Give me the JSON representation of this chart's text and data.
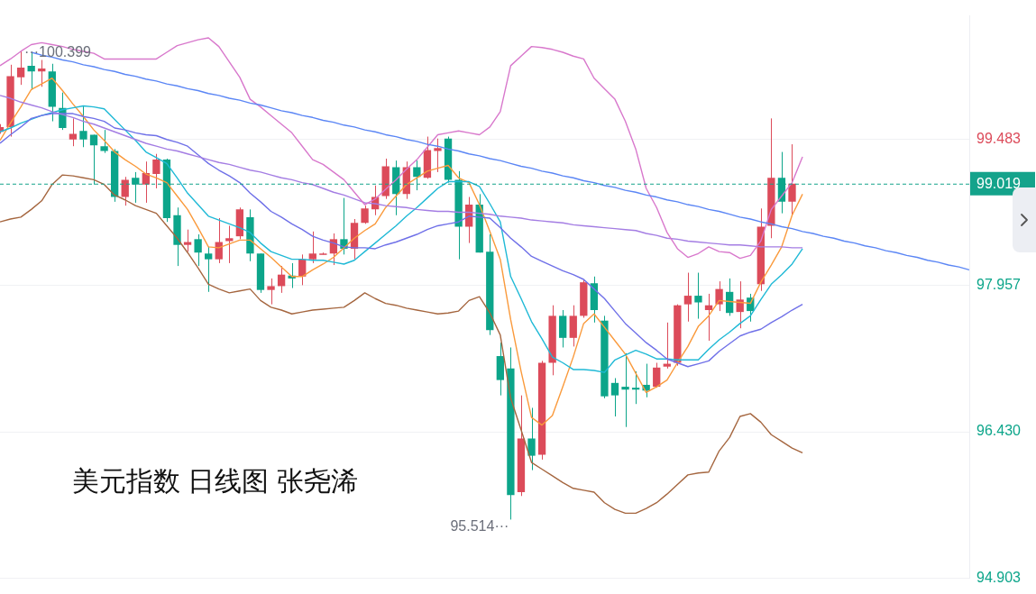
{
  "chart_data": {
    "type": "candlestick",
    "title": "美元指数 日线图 张尧浠",
    "categories": [
      null,
      null,
      null,
      null,
      null,
      null,
      null,
      null,
      null,
      null,
      null,
      null,
      null,
      null,
      null,
      null,
      null,
      null,
      null,
      null,
      null,
      null,
      null,
      null,
      null,
      null,
      null,
      null,
      null,
      null,
      null,
      null,
      null,
      null,
      null,
      null,
      null,
      null,
      null,
      null,
      null,
      null,
      null,
      null,
      null,
      null,
      null,
      null,
      null,
      null,
      null,
      null,
      null,
      null,
      null,
      null,
      null,
      null,
      null,
      null,
      null,
      null,
      null,
      null,
      null,
      null,
      null,
      null,
      null,
      null,
      null,
      null,
      null,
      null,
      null,
      null,
      null,
      null,
      null,
      null,
      null,
      null,
      null,
      null,
      null,
      null,
      null,
      null,
      null,
      null,
      null,
      null,
      null,
      null
    ],
    "ohlc": [
      [
        99.56,
        99.64,
        99.54,
        99.61
      ],
      [
        99.61,
        100.26,
        99.51,
        100.14
      ],
      [
        100.13,
        100.399,
        100.05,
        100.23
      ],
      [
        100.25,
        100.39,
        100.0,
        100.19
      ],
      [
        100.19,
        100.31,
        100.03,
        100.22
      ],
      [
        100.19,
        100.27,
        99.67,
        99.82
      ],
      [
        99.81,
        99.97,
        99.58,
        99.6
      ],
      [
        99.48,
        99.7,
        99.41,
        99.54
      ],
      [
        99.57,
        99.83,
        99.4,
        99.48
      ],
      [
        99.53,
        99.53,
        99.01,
        99.42
      ],
      [
        99.41,
        99.58,
        99.34,
        99.36
      ],
      [
        99.36,
        99.38,
        98.83,
        98.88
      ],
      [
        98.88,
        99.09,
        98.79,
        99.06
      ],
      [
        99.08,
        99.14,
        98.82,
        99.01
      ],
      [
        99.01,
        99.25,
        98.82,
        99.13
      ],
      [
        99.12,
        99.33,
        98.97,
        99.27
      ],
      [
        99.27,
        99.28,
        98.62,
        98.66
      ],
      [
        98.69,
        98.77,
        98.16,
        98.38
      ],
      [
        98.38,
        98.54,
        98.31,
        98.41
      ],
      [
        98.44,
        98.49,
        98.16,
        98.3
      ],
      [
        98.29,
        98.36,
        97.89,
        98.23
      ],
      [
        98.23,
        98.66,
        98.19,
        98.41
      ],
      [
        98.42,
        98.58,
        98.19,
        98.45
      ],
      [
        98.47,
        98.77,
        98.44,
        98.75
      ],
      [
        98.67,
        98.75,
        98.21,
        98.29
      ],
      [
        98.29,
        98.29,
        97.88,
        97.91
      ],
      [
        97.91,
        98.03,
        97.76,
        97.95
      ],
      [
        97.95,
        98.16,
        97.88,
        98.07
      ],
      [
        98.06,
        98.19,
        97.93,
        98.03
      ],
      [
        98.05,
        98.28,
        97.96,
        98.23
      ],
      [
        98.23,
        98.52,
        98.19,
        98.29
      ],
      [
        98.29,
        98.3,
        98.28,
        98.29
      ],
      [
        98.29,
        98.5,
        98.17,
        98.44
      ],
      [
        98.44,
        98.87,
        98.28,
        98.34
      ],
      [
        98.34,
        98.65,
        98.23,
        98.61
      ],
      [
        98.61,
        98.79,
        98.6,
        98.76
      ],
      [
        98.75,
        99.0,
        98.69,
        98.88
      ],
      [
        98.89,
        99.28,
        98.86,
        99.2
      ],
      [
        99.19,
        99.26,
        98.69,
        98.91
      ],
      [
        98.91,
        99.25,
        98.86,
        99.19
      ],
      [
        99.19,
        99.26,
        98.95,
        99.09
      ],
      [
        99.08,
        99.51,
        99.07,
        99.37
      ],
      [
        99.36,
        99.49,
        99.14,
        99.39
      ],
      [
        99.49,
        99.51,
        99.03,
        99.06
      ],
      [
        99.06,
        99.15,
        98.23,
        98.57
      ],
      [
        98.57,
        98.88,
        98.4,
        98.8
      ],
      [
        98.8,
        98.91,
        98.3,
        98.3
      ],
      [
        98.31,
        98.49,
        97.44,
        97.49
      ],
      [
        97.22,
        97.36,
        96.81,
        96.97
      ],
      [
        97.09,
        97.31,
        95.514,
        95.77
      ],
      [
        95.8,
        96.81,
        95.76,
        96.36
      ],
      [
        96.36,
        96.68,
        96.03,
        96.18
      ],
      [
        96.19,
        97.17,
        96.14,
        97.15
      ],
      [
        97.15,
        97.75,
        97.02,
        97.64
      ],
      [
        97.64,
        97.7,
        97.31,
        97.41
      ],
      [
        97.41,
        97.75,
        97.32,
        97.64
      ],
      [
        97.64,
        98.01,
        97.62,
        97.99
      ],
      [
        97.98,
        98.05,
        97.57,
        97.7
      ],
      [
        97.59,
        97.64,
        96.78,
        96.8
      ],
      [
        96.94,
        96.99,
        96.59,
        96.81
      ],
      [
        96.9,
        97.25,
        96.48,
        96.87
      ],
      [
        96.89,
        97.06,
        96.72,
        96.87
      ],
      [
        96.92,
        97.14,
        96.79,
        96.86
      ],
      [
        96.9,
        97.15,
        96.89,
        97.1
      ],
      [
        97.11,
        97.57,
        97.09,
        97.14
      ],
      [
        97.15,
        97.76,
        97.12,
        97.75
      ],
      [
        97.76,
        98.09,
        97.58,
        97.85
      ],
      [
        97.85,
        98.09,
        97.61,
        97.78
      ],
      [
        97.7,
        97.87,
        97.38,
        97.75
      ],
      [
        97.76,
        98.0,
        97.69,
        97.92
      ],
      [
        97.89,
        98.03,
        97.64,
        97.67
      ],
      [
        97.68,
        98.0,
        97.51,
        97.81
      ],
      [
        97.83,
        97.87,
        97.58,
        97.69
      ],
      [
        97.97,
        98.76,
        97.9,
        98.57
      ],
      [
        98.58,
        99.7,
        98.45,
        99.08
      ],
      [
        99.08,
        99.35,
        98.71,
        98.83
      ],
      [
        98.83,
        99.43,
        98.68,
        99.019
      ],
      null,
      null,
      null,
      null,
      null,
      null,
      null,
      null,
      null,
      null,
      null,
      null,
      null,
      null,
      null,
      null,
      null
    ],
    "colors": [
      "#dc4b5a",
      "#dc4b5a",
      "#dc4b5a",
      "#0ca58a",
      "#dc4b5a",
      "#0ca58a",
      "#0ca58a",
      "#dc4b5a",
      "#0ca58a",
      "#0ca58a",
      "#0ca58a",
      "#0ca58a",
      "#dc4b5a",
      "#0ca58a",
      "#dc4b5a",
      "#dc4b5a",
      "#0ca58a",
      "#0ca58a",
      "#dc4b5a",
      "#0ca58a",
      "#0ca58a",
      "#dc4b5a",
      "#dc4b5a",
      "#dc4b5a",
      "#0ca58a",
      "#0ca58a",
      "#dc4b5a",
      "#dc4b5a",
      "#0ca58a",
      "#dc4b5a",
      "#dc4b5a",
      "#dc4b5a",
      "#dc4b5a",
      "#0ca58a",
      "#dc4b5a",
      "#dc4b5a",
      "#dc4b5a",
      "#dc4b5a",
      "#0ca58a",
      "#dc4b5a",
      "#0ca58a",
      "#dc4b5a",
      "#dc4b5a",
      "#0ca58a",
      "#0ca58a",
      "#dc4b5a",
      "#0ca58a",
      "#0ca58a",
      "#0ca58a",
      "#0ca58a",
      "#dc4b5a",
      "#0ca58a",
      "#dc4b5a",
      "#dc4b5a",
      "#0ca58a",
      "#dc4b5a",
      "#dc4b5a",
      "#0ca58a",
      "#0ca58a",
      "#0ca58a",
      "#0ca58a",
      "#0ca58a",
      "#0ca58a",
      "#dc4b5a",
      "#dc4b5a",
      "#dc4b5a",
      "#dc4b5a",
      "#0ca58a",
      "#dc4b5a",
      "#dc4b5a",
      "#0ca58a",
      "#dc4b5a",
      "#0ca58a",
      "#dc4b5a",
      "#dc4b5a",
      "#0ca58a",
      "#dc4b5a",
      null,
      null,
      null,
      null,
      null,
      null,
      null,
      null,
      null,
      null,
      null,
      null,
      null,
      null,
      null,
      null,
      null
    ],
    "series": [
      {
        "type": "line",
        "color": "#5b86f5",
        "values": [
          null,
          null,
          null,
          100.39,
          100.36,
          100.34,
          100.31,
          100.29,
          100.26,
          100.24,
          100.21,
          100.19,
          100.16,
          100.14,
          100.11,
          100.09,
          100.06,
          100.04,
          100.01,
          99.99,
          99.96,
          99.94,
          99.91,
          99.89,
          99.86,
          99.84,
          99.81,
          99.78,
          99.76,
          99.73,
          99.71,
          99.68,
          99.66,
          99.63,
          99.61,
          99.58,
          99.56,
          99.53,
          99.51,
          99.48,
          99.46,
          99.43,
          99.41,
          99.38,
          99.36,
          99.33,
          99.31,
          99.28,
          99.26,
          99.23,
          99.2,
          99.18,
          99.15,
          99.13,
          99.1,
          99.08,
          99.05,
          99.03,
          99.0,
          98.98,
          98.95,
          98.93,
          98.9,
          98.88,
          98.85,
          98.83,
          98.8,
          98.78,
          98.75,
          98.73,
          98.7,
          98.67,
          98.65,
          98.62,
          98.6,
          98.57,
          98.55,
          98.52,
          98.5,
          98.47,
          98.45,
          98.42,
          98.4,
          98.37,
          98.35,
          98.32,
          98.3,
          98.27,
          98.25,
          98.22,
          98.2,
          98.17,
          98.15,
          98.12
        ]
      },
      {
        "type": "line",
        "color": "#d878cc",
        "values": [
          100.25,
          100.32,
          100.4,
          100.47,
          100.49,
          100.47,
          100.45,
          100.42,
          100.4,
          100.38,
          100.32,
          100.32,
          100.32,
          100.32,
          100.32,
          100.32,
          100.39,
          100.46,
          100.49,
          100.52,
          100.54,
          100.45,
          100.29,
          100.13,
          99.9,
          99.82,
          99.73,
          99.64,
          99.55,
          99.41,
          99.27,
          99.22,
          99.14,
          99.06,
          98.93,
          98.8,
          98.86,
          98.96,
          99.06,
          99.17,
          99.27,
          99.4,
          99.53,
          99.55,
          99.57,
          99.55,
          99.53,
          99.61,
          99.77,
          100.25,
          100.35,
          100.45,
          100.44,
          100.42,
          100.39,
          100.35,
          100.32,
          100.12,
          100.01,
          99.9,
          99.67,
          99.38,
          98.97,
          98.77,
          98.51,
          98.34,
          98.25,
          98.29,
          98.36,
          98.31,
          98.3,
          98.24,
          98.27,
          98.42,
          98.75,
          98.89,
          99.03,
          99.3,
          null,
          null,
          null,
          null,
          null,
          null,
          null,
          null,
          null,
          null,
          null,
          null,
          null,
          null,
          null,
          null
        ]
      },
      {
        "type": "line",
        "color": "#a5663f",
        "values": [
          98.62,
          98.65,
          98.67,
          98.75,
          98.84,
          99.01,
          99.11,
          99.1,
          99.08,
          99.06,
          99.01,
          98.9,
          98.85,
          98.79,
          98.75,
          98.71,
          98.58,
          98.45,
          98.3,
          98.14,
          97.97,
          97.92,
          97.88,
          97.9,
          97.92,
          97.8,
          97.73,
          97.7,
          97.66,
          97.68,
          97.7,
          97.71,
          97.72,
          97.73,
          97.8,
          97.88,
          97.82,
          97.77,
          97.75,
          97.72,
          97.7,
          97.68,
          97.66,
          97.67,
          97.69,
          97.8,
          97.84,
          97.67,
          97.44,
          96.78,
          96.45,
          96.11,
          96.04,
          95.97,
          95.9,
          95.84,
          95.82,
          95.8,
          95.69,
          95.62,
          95.58,
          95.58,
          95.63,
          95.69,
          95.78,
          95.88,
          95.98,
          96.0,
          96.01,
          96.23,
          96.37,
          96.59,
          96.62,
          96.53,
          96.4,
          96.33,
          96.26,
          96.21,
          null,
          null,
          null,
          null,
          null,
          null,
          null,
          null,
          null,
          null,
          null,
          null,
          null,
          null,
          null,
          null
        ]
      },
      {
        "type": "line",
        "color": "#a47de3",
        "values": [
          99.94,
          99.91,
          99.87,
          99.84,
          99.81,
          99.77,
          99.74,
          99.71,
          99.67,
          99.64,
          99.6,
          99.56,
          99.52,
          99.48,
          99.44,
          99.41,
          99.38,
          99.36,
          99.33,
          99.3,
          99.27,
          99.24,
          99.22,
          99.19,
          99.16,
          99.14,
          99.11,
          99.08,
          99.06,
          99.03,
          99.01,
          98.97,
          98.93,
          98.9,
          98.86,
          98.82,
          98.81,
          98.79,
          98.78,
          98.77,
          98.75,
          98.74,
          98.73,
          98.73,
          98.72,
          98.72,
          98.71,
          98.7,
          98.68,
          98.67,
          98.66,
          98.64,
          98.63,
          98.62,
          98.61,
          98.59,
          98.58,
          98.57,
          98.56,
          98.55,
          98.54,
          98.53,
          98.5,
          98.48,
          98.45,
          98.44,
          98.42,
          98.41,
          98.4,
          98.39,
          98.38,
          98.38,
          98.37,
          98.36,
          98.36,
          98.36,
          98.35,
          98.35,
          null,
          null,
          null,
          null,
          null,
          null,
          null,
          null,
          null,
          null,
          null,
          null,
          null,
          null,
          null,
          null
        ]
      },
      {
        "type": "line",
        "color": "#6f70e8",
        "values": [
          99.44,
          99.53,
          99.61,
          99.7,
          99.73,
          99.75,
          99.75,
          99.75,
          99.72,
          99.7,
          99.67,
          99.6,
          99.58,
          99.55,
          99.53,
          99.52,
          99.48,
          99.45,
          99.41,
          99.32,
          99.23,
          99.16,
          99.1,
          99.03,
          98.92,
          98.83,
          98.73,
          98.67,
          98.6,
          98.54,
          98.47,
          98.43,
          98.4,
          98.36,
          98.35,
          98.35,
          98.34,
          98.38,
          98.41,
          98.45,
          98.49,
          98.54,
          98.58,
          98.6,
          98.62,
          98.68,
          98.67,
          98.66,
          98.56,
          98.45,
          98.36,
          98.26,
          98.21,
          98.16,
          98.11,
          98.07,
          98.02,
          97.92,
          97.82,
          97.69,
          97.56,
          97.46,
          97.36,
          97.28,
          97.19,
          97.15,
          97.11,
          97.14,
          97.17,
          97.27,
          97.35,
          97.43,
          97.47,
          97.5,
          97.57,
          97.63,
          97.7,
          97.76,
          null,
          null,
          null,
          null,
          null,
          null,
          null,
          null,
          null,
          null,
          null,
          null,
          null,
          null,
          null,
          null
        ]
      },
      {
        "type": "line",
        "color": "#1fb9d6",
        "values": [
          99.56,
          99.6,
          99.65,
          99.69,
          99.73,
          99.76,
          99.79,
          99.81,
          99.83,
          99.82,
          99.8,
          99.69,
          99.58,
          99.47,
          99.35,
          99.29,
          99.23,
          99.08,
          98.92,
          98.8,
          98.68,
          98.64,
          98.6,
          98.56,
          98.51,
          98.4,
          98.31,
          98.27,
          98.23,
          98.23,
          98.22,
          98.22,
          98.2,
          98.18,
          98.22,
          98.31,
          98.4,
          98.49,
          98.58,
          98.68,
          98.77,
          98.87,
          98.97,
          99.04,
          99.04,
          99.04,
          98.99,
          98.81,
          98.62,
          98.05,
          97.82,
          97.58,
          97.4,
          97.21,
          97.15,
          97.08,
          97.08,
          97.07,
          97.05,
          97.18,
          97.23,
          97.28,
          97.24,
          97.19,
          97.19,
          97.18,
          97.18,
          97.18,
          97.29,
          97.39,
          97.47,
          97.56,
          97.64,
          97.81,
          97.97,
          98.07,
          98.18,
          98.34,
          null,
          null,
          null,
          null,
          null,
          null,
          null,
          null,
          null,
          null,
          null,
          null,
          null,
          null,
          null,
          null
        ]
      },
      {
        "type": "line",
        "color": "#fa9a3c",
        "values": [
          99.47,
          99.65,
          99.82,
          100.0,
          100.06,
          100.12,
          99.99,
          99.85,
          99.72,
          99.58,
          99.47,
          99.35,
          99.27,
          99.2,
          99.12,
          99.08,
          99.03,
          98.89,
          98.75,
          98.56,
          98.36,
          98.35,
          98.39,
          98.43,
          98.43,
          98.34,
          98.25,
          98.15,
          98.05,
          98.05,
          98.12,
          98.18,
          98.25,
          98.35,
          98.45,
          98.53,
          98.6,
          98.77,
          98.89,
          99.01,
          99.08,
          99.15,
          99.18,
          99.21,
          99.08,
          99.03,
          98.8,
          98.52,
          98.23,
          97.6,
          97.06,
          96.58,
          96.5,
          96.6,
          96.9,
          97.21,
          97.56,
          97.66,
          97.52,
          97.38,
          97.24,
          97.04,
          96.84,
          96.9,
          96.97,
          97.15,
          97.32,
          97.53,
          97.64,
          97.8,
          97.79,
          97.78,
          97.77,
          97.99,
          98.17,
          98.36,
          98.69,
          98.91,
          null,
          null,
          null,
          null,
          null,
          null,
          null,
          null,
          null,
          null,
          null,
          null,
          null,
          null,
          null,
          null
        ]
      }
    ],
    "ylim": [
      94.903,
      100.77
    ],
    "yticks": [
      94.903,
      {
        "value": 96.43,
        "label": "96.430"
      },
      97.957,
      99.483
    ],
    "grid": "y",
    "tick_labels": "y",
    "ref_lines": [
      {
        "axis": "y",
        "value": 99.019,
        "label": "99.019",
        "color": "#14a38b",
        "line_style": "dashed"
      }
    ],
    "annotations": [
      "···100.399",
      "95.514···"
    ]
  }
}
